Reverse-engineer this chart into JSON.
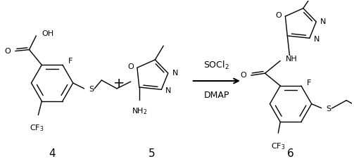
{
  "background_color": "#ffffff",
  "fig_width": 5.03,
  "fig_height": 2.36,
  "dpi": 100,
  "compound4_label": "4",
  "compound5_label": "5",
  "compound6_label": "6",
  "arrow_label_top": "SOCl$_2$",
  "arrow_label_bottom": "DMAP",
  "line_color": "#000000",
  "font_size_label": 11,
  "font_size_atom": 8,
  "font_size_reagent": 9
}
